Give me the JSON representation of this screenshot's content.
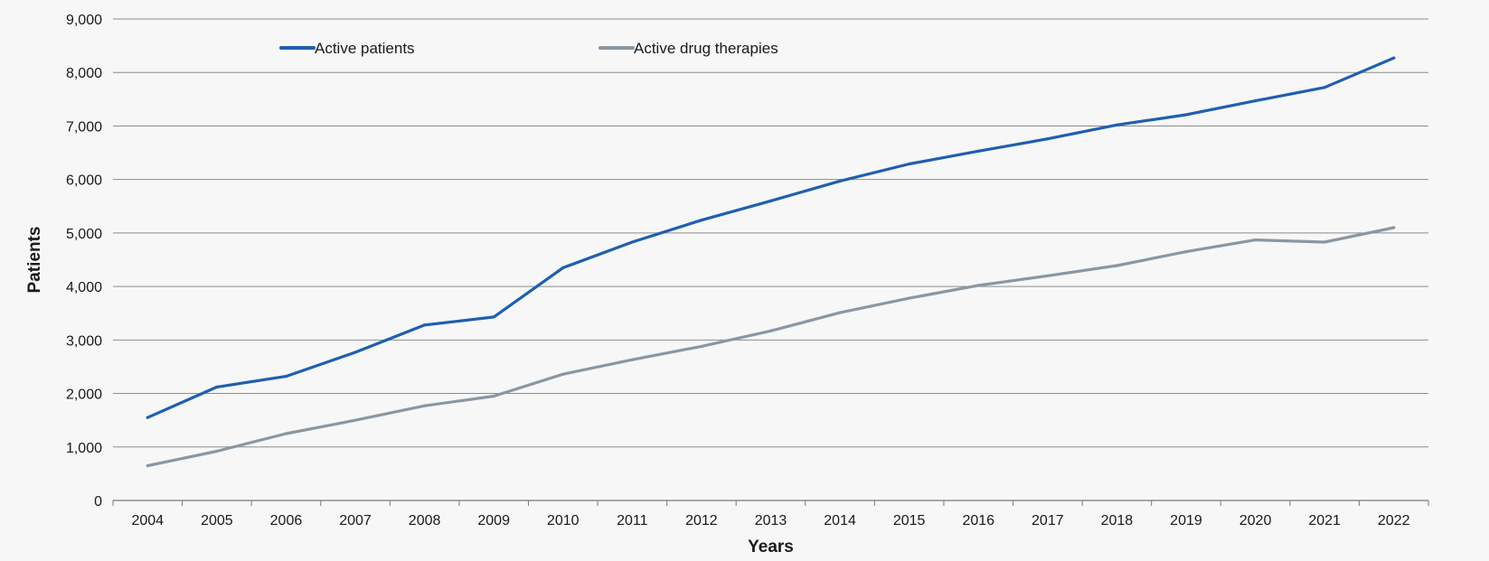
{
  "chart_data": {
    "type": "line",
    "title": "",
    "xlabel": "Years",
    "ylabel": "Patients",
    "x": [
      "2004",
      "2005",
      "2006",
      "2007",
      "2008",
      "2009",
      "2010",
      "2011",
      "2012",
      "2013",
      "2014",
      "2015",
      "2016",
      "2017",
      "2018",
      "2019",
      "2020",
      "2021",
      "2022"
    ],
    "y_ticks": [
      "0",
      "1,000",
      "2,000",
      "3,000",
      "4,000",
      "5,000",
      "6,000",
      "7,000",
      "8,000",
      "9,000"
    ],
    "ylim": [
      0,
      9000
    ],
    "grid": true,
    "legend_position": "top",
    "series": [
      {
        "name": "Active patients",
        "color": "#1f5fae",
        "values": [
          1550,
          2120,
          2320,
          2770,
          3280,
          3430,
          4350,
          4830,
          5240,
          5600,
          5970,
          6290,
          6530,
          6760,
          7020,
          7210,
          7470,
          7720,
          8270
        ]
      },
      {
        "name": "Active drug therapies",
        "color": "#8a97a3",
        "values": [
          650,
          920,
          1250,
          1500,
          1770,
          1950,
          2360,
          2630,
          2880,
          3170,
          3510,
          3780,
          4020,
          4200,
          4390,
          4650,
          4870,
          4830,
          5100
        ]
      }
    ]
  }
}
